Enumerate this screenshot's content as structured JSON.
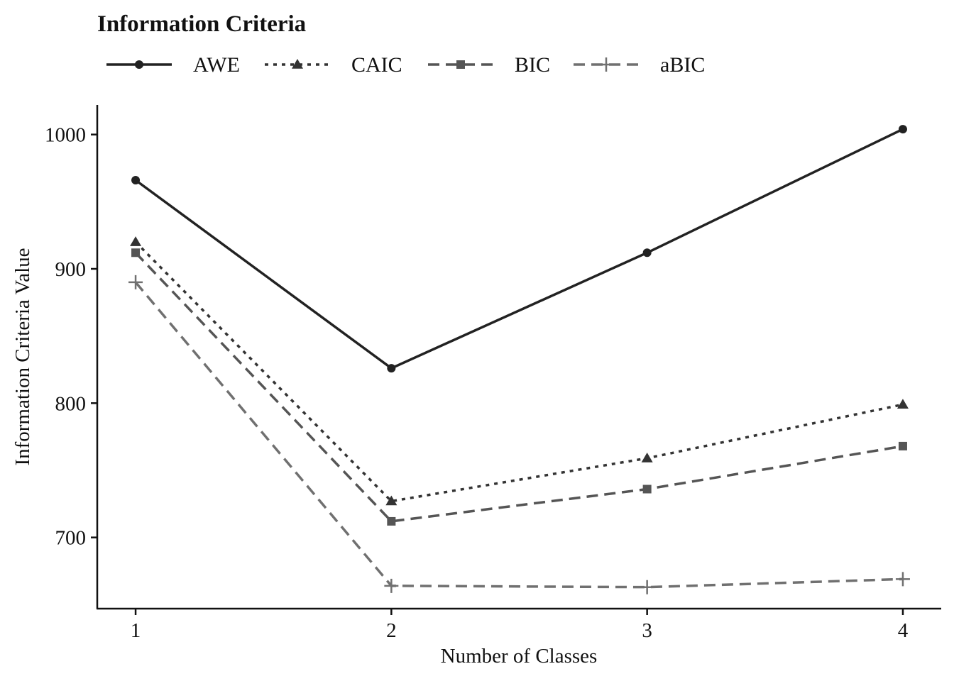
{
  "chart_data": {
    "type": "line",
    "title": "Information Criteria",
    "xlabel": "Number of Classes",
    "ylabel": "Information Criteria Value",
    "x": [
      1,
      2,
      3,
      4
    ],
    "xlim": [
      0.85,
      4.15
    ],
    "ylim": [
      647,
      1022
    ],
    "yticks": [
      700,
      800,
      900,
      1000
    ],
    "grid": false,
    "legend_position": "top-left",
    "series": [
      {
        "name": "AWE",
        "values": [
          966,
          826,
          912,
          1004
        ],
        "line_style": "solid",
        "marker": "circle",
        "color": "#222222"
      },
      {
        "name": "CAIC",
        "values": [
          920,
          727,
          759,
          799
        ],
        "line_style": "dotted",
        "marker": "triangle",
        "color": "#333333"
      },
      {
        "name": "BIC",
        "values": [
          912,
          712,
          736,
          768
        ],
        "line_style": "dashed",
        "marker": "square",
        "color": "#555555"
      },
      {
        "name": "aBIC",
        "values": [
          890,
          664,
          663,
          669
        ],
        "line_style": "dashed",
        "marker": "plus",
        "color": "#707070"
      }
    ]
  }
}
